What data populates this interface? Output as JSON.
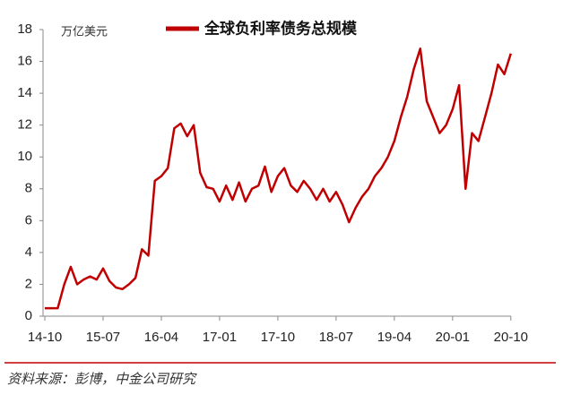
{
  "chart_data": {
    "type": "line",
    "y_label": "万亿美元",
    "source": "资料来源：彭博，中金公司研究",
    "x": [
      "14-10",
      "14-11",
      "14-12",
      "15-01",
      "15-02",
      "15-03",
      "15-04",
      "15-05",
      "15-06",
      "15-07",
      "15-08",
      "15-09",
      "15-10",
      "15-11",
      "15-12",
      "16-01",
      "16-02",
      "16-03",
      "16-04",
      "16-05",
      "16-06",
      "16-07",
      "16-08",
      "16-09",
      "16-10",
      "16-11",
      "16-12",
      "17-01",
      "17-02",
      "17-03",
      "17-04",
      "17-05",
      "17-06",
      "17-07",
      "17-08",
      "17-09",
      "17-10",
      "17-11",
      "17-12",
      "18-01",
      "18-02",
      "18-03",
      "18-04",
      "18-05",
      "18-06",
      "18-07",
      "18-08",
      "18-09",
      "18-10",
      "18-11",
      "18-12",
      "19-01",
      "19-02",
      "19-03",
      "19-04",
      "19-05",
      "19-06",
      "19-07",
      "19-08",
      "19-09",
      "19-10",
      "19-11",
      "19-12",
      "20-01",
      "20-02",
      "20-03",
      "20-04",
      "20-05",
      "20-06",
      "20-07",
      "20-08",
      "20-09",
      "20-10"
    ],
    "series": [
      {
        "name": "全球负利率债务总规模",
        "color": "#c00000",
        "values": [
          0.5,
          0.5,
          0.5,
          2.0,
          3.1,
          2.0,
          2.3,
          2.5,
          2.3,
          3.0,
          2.2,
          1.8,
          1.7,
          2.0,
          2.4,
          4.2,
          3.8,
          8.5,
          8.8,
          9.3,
          11.8,
          12.1,
          11.3,
          12.0,
          9.0,
          8.1,
          8.0,
          7.2,
          8.2,
          7.3,
          8.4,
          7.2,
          8.0,
          8.2,
          9.4,
          7.8,
          8.8,
          9.3,
          8.2,
          7.8,
          8.5,
          8.0,
          7.3,
          8.0,
          7.2,
          7.8,
          7.0,
          5.9,
          6.8,
          7.5,
          8.0,
          8.8,
          9.3,
          10.0,
          11.0,
          12.5,
          13.8,
          15.5,
          16.8,
          13.5,
          12.5,
          11.5,
          12.0,
          13.0,
          14.5,
          8.0,
          11.5,
          11.0,
          12.5,
          14.0,
          15.8,
          15.2,
          16.5
        ]
      }
    ],
    "xticks": [
      "14-10",
      "15-07",
      "16-04",
      "17-01",
      "17-10",
      "18-07",
      "19-04",
      "20-01",
      "20-10"
    ],
    "ylim": [
      0,
      18
    ],
    "yticks": [
      0,
      2,
      4,
      6,
      8,
      10,
      12,
      14,
      16,
      18
    ],
    "grid": false,
    "legend": "top"
  }
}
